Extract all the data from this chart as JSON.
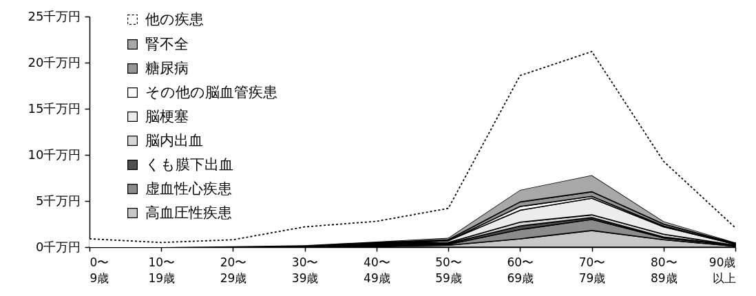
{
  "chart_data": {
    "type": "area",
    "stacked": true,
    "grid": false,
    "legend": "top left",
    "categories": [
      "0〜9歳",
      "10〜19歳",
      "20〜29歳",
      "30〜39歳",
      "40〜49歳",
      "50〜59歳",
      "60〜69歳",
      "70〜79歳",
      "80〜89歳",
      "90歳以上"
    ],
    "ylim": [
      0,
      25
    ],
    "yticks": [
      {
        "value": 0,
        "label": "0千万円"
      },
      {
        "value": 5,
        "label": "5千万円"
      },
      {
        "value": 10,
        "label": "10千万円"
      },
      {
        "value": 15,
        "label": "15千万円"
      },
      {
        "value": 20,
        "label": "20千万円"
      },
      {
        "value": 25,
        "label": "25千万円"
      }
    ],
    "series": [
      {
        "name": "高血圧性疾患",
        "color": "#c8c8c8",
        "values": [
          0,
          0,
          0,
          0,
          0.1,
          0.2,
          0.9,
          1.8,
          0.8,
          0.1
        ]
      },
      {
        "name": "虚血性心疾患",
        "color": "#8c8c8c",
        "values": [
          0,
          0,
          0,
          0,
          0.1,
          0.1,
          1.0,
          1.2,
          0.2,
          0.1
        ]
      },
      {
        "name": "くも膜下出血",
        "color": "#505050",
        "values": [
          0,
          0,
          0,
          0.1,
          0.1,
          0.1,
          0.4,
          0.2,
          0.1,
          0
        ]
      },
      {
        "name": "脳内出血",
        "color": "#d8d8d8",
        "values": [
          0,
          0,
          0.1,
          0.1,
          0.1,
          0.1,
          0.4,
          0.3,
          0.3,
          0
        ]
      },
      {
        "name": "脳梗塞",
        "color": "#ececec",
        "values": [
          0,
          0,
          0,
          0,
          0,
          0.2,
          1.3,
          1.8,
          0.8,
          0.1
        ]
      },
      {
        "name": "その他の脳血管疾患",
        "color": "#ffffff",
        "values": [
          0,
          0,
          0,
          0,
          0,
          0,
          0.4,
          0.2,
          0.1,
          0
        ]
      },
      {
        "name": "糖尿病",
        "color": "#969696",
        "values": [
          0,
          0,
          0,
          0,
          0.1,
          0.1,
          0.5,
          0.5,
          0.2,
          0.1
        ]
      },
      {
        "name": "腎不全",
        "color": "#a8a8a8",
        "values": [
          0,
          0,
          0,
          0,
          0.1,
          0.2,
          1.3,
          1.8,
          0.3,
          0.1
        ]
      },
      {
        "name": "他の疾患",
        "color": "#ffffff",
        "line_style": "dotted",
        "values": [
          0.9,
          0.5,
          0.7,
          2.0,
          2.2,
          3.2,
          12.4,
          13.4,
          6.5,
          1.6
        ]
      }
    ]
  }
}
